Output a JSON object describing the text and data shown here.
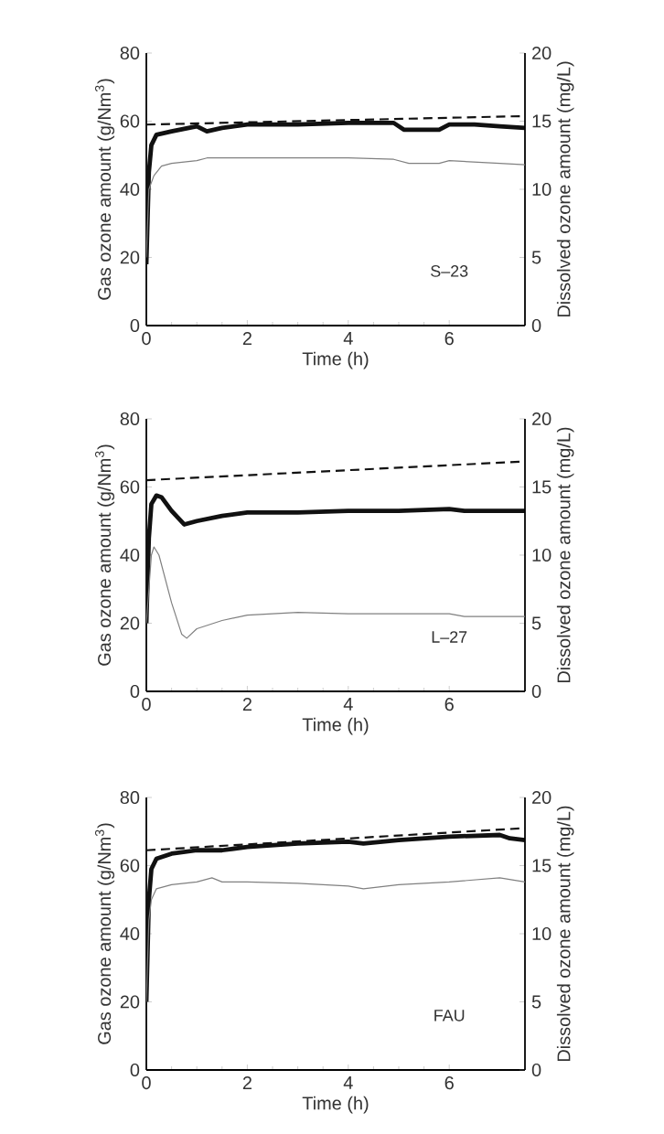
{
  "chart_data": [
    {
      "type": "line",
      "xlabel": "Time (h)",
      "ylabel": "Gas ozone amount (g/Nm$^{3}$)",
      "y2label": "Dissolved ozone amount (mg/L)",
      "annotations": [
        "S–23"
      ],
      "xlim": [
        0,
        7.5
      ],
      "ylim": [
        0,
        80
      ],
      "y2lim": [
        0,
        20
      ],
      "xticks": [
        0,
        2,
        4,
        6
      ],
      "yticks": [
        0,
        20,
        40,
        60,
        80
      ],
      "y2ticks": [
        0,
        5,
        10,
        15,
        20
      ],
      "series": [
        {
          "color": "#111111",
          "line_style": "dashed",
          "x": [
            0,
            7.5
          ],
          "values": [
            59,
            61.5
          ]
        },
        {
          "color": "#111111",
          "line_style": "solid",
          "x": [
            0,
            0.05,
            0.1,
            0.2,
            0.5,
            1,
            1.2,
            1.5,
            2,
            3,
            4,
            4.9,
            5.1,
            5.8,
            6,
            6.5,
            7,
            7.5
          ],
          "values": [
            18,
            45,
            53,
            56,
            57,
            58.5,
            57,
            58,
            59,
            59,
            59.5,
            59.5,
            57.5,
            57.5,
            59,
            59,
            58.5,
            58
          ]
        },
        {
          "color": "#808080",
          "line_style": "solid",
          "axis": "y2",
          "x": [
            0,
            0.05,
            0.15,
            0.3,
            0.5,
            1,
            1.2,
            1.5,
            2,
            3,
            4,
            4.9,
            5.2,
            5.8,
            6,
            7,
            7.5
          ],
          "values": [
            5,
            10,
            11,
            11.7,
            11.9,
            12.1,
            12.3,
            12.3,
            12.3,
            12.3,
            12.3,
            12.2,
            11.9,
            11.9,
            12.1,
            11.9,
            11.8
          ]
        }
      ]
    },
    {
      "type": "line",
      "xlabel": "Time (h)",
      "ylabel": "Gas ozone amount (g/Nm$^{3}$)",
      "y2label": "Dissolved ozone amount (mg/L)",
      "annotations": [
        "L–27"
      ],
      "xlim": [
        0,
        7.5
      ],
      "ylim": [
        0,
        80
      ],
      "y2lim": [
        0,
        20
      ],
      "xticks": [
        0,
        2,
        4,
        6
      ],
      "yticks": [
        0,
        20,
        40,
        60,
        80
      ],
      "y2ticks": [
        0,
        5,
        10,
        15,
        20
      ],
      "series": [
        {
          "color": "#111111",
          "line_style": "dashed",
          "x": [
            0,
            7.5
          ],
          "values": [
            62,
            67.5
          ]
        },
        {
          "color": "#111111",
          "line_style": "solid",
          "x": [
            0,
            0.05,
            0.1,
            0.2,
            0.3,
            0.5,
            0.75,
            1,
            1.5,
            2,
            3,
            4,
            5,
            6,
            6.3,
            7.5
          ],
          "values": [
            20,
            45,
            55,
            57.5,
            57,
            53,
            49,
            50,
            51.5,
            52.5,
            52.5,
            53,
            53,
            53.5,
            53,
            53
          ]
        },
        {
          "color": "#808080",
          "line_style": "solid",
          "axis": "y2",
          "x": [
            0,
            0.1,
            0.15,
            0.25,
            0.5,
            0.7,
            0.8,
            1,
            1.5,
            2,
            3,
            4,
            5,
            6,
            6.3,
            7.5
          ],
          "values": [
            5,
            10,
            10.6,
            10,
            6.5,
            4.2,
            3.9,
            4.6,
            5.2,
            5.6,
            5.8,
            5.7,
            5.7,
            5.7,
            5.5,
            5.5
          ]
        }
      ]
    },
    {
      "type": "line",
      "xlabel": "Time (h)",
      "ylabel": "Gas ozone amount (g/Nm$^{3}$)",
      "y2label": "Dissolved ozone amount (mg/L)",
      "annotations": [
        "FAU"
      ],
      "xlim": [
        0,
        7.5
      ],
      "ylim": [
        0,
        80
      ],
      "y2lim": [
        0,
        20
      ],
      "xticks": [
        0,
        2,
        4,
        6
      ],
      "yticks": [
        0,
        20,
        40,
        60,
        80
      ],
      "y2ticks": [
        0,
        5,
        10,
        15,
        20
      ],
      "series": [
        {
          "color": "#111111",
          "line_style": "dashed",
          "x": [
            0,
            7.5
          ],
          "values": [
            64.5,
            71
          ]
        },
        {
          "color": "#111111",
          "line_style": "solid",
          "x": [
            0,
            0.05,
            0.1,
            0.2,
            0.5,
            1,
            1.5,
            2,
            3,
            4,
            4.3,
            5,
            6,
            7,
            7.2,
            7.5
          ],
          "values": [
            20,
            50,
            59,
            62,
            63.5,
            64.5,
            64.5,
            65.5,
            66.5,
            67,
            66.5,
            67.5,
            68.5,
            69,
            68,
            67.5
          ]
        },
        {
          "color": "#808080",
          "line_style": "solid",
          "axis": "y2",
          "x": [
            0,
            0.05,
            0.1,
            0.2,
            0.5,
            1,
            1.3,
            1.5,
            2,
            3,
            4,
            4.3,
            5,
            6,
            7,
            7.5
          ],
          "values": [
            5,
            11,
            12.5,
            13.3,
            13.6,
            13.8,
            14.1,
            13.8,
            13.8,
            13.7,
            13.5,
            13.3,
            13.6,
            13.8,
            14.1,
            13.8
          ]
        }
      ]
    }
  ]
}
